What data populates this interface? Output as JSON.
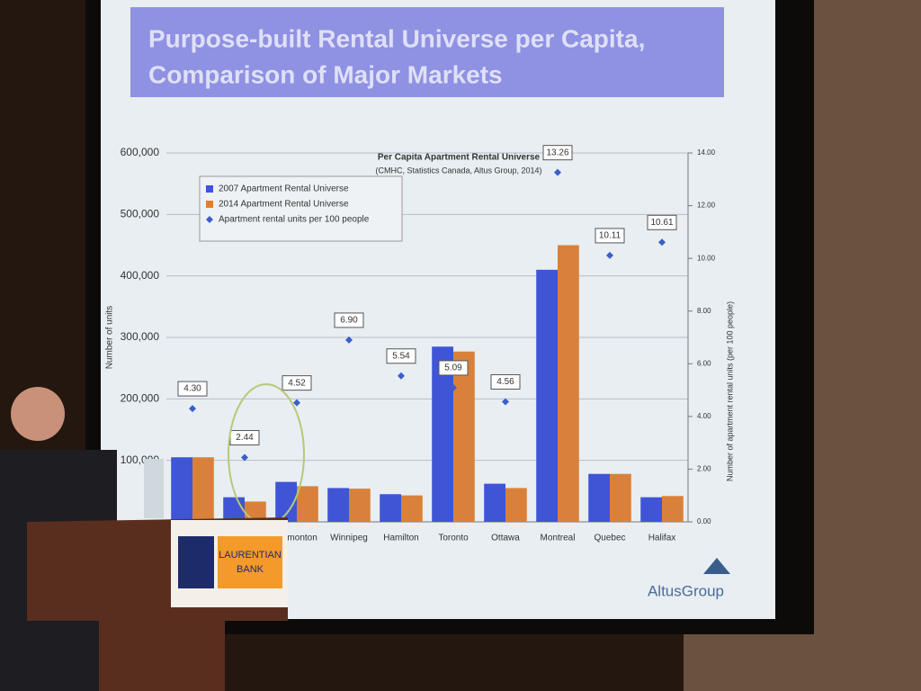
{
  "slide": {
    "title_lines": [
      "Purpose-built Rental Universe per Capita,",
      "Comparison of Major Markets"
    ],
    "logo": "AltusGroup"
  },
  "podium": {
    "sign_lines": [
      "LAURENTIAN",
      "BANK"
    ]
  },
  "chart_data": {
    "type": "bar",
    "title": "Per Capita Apartment Rental Universe",
    "subtitle": "(CMHC, Statistics Canada, Altus Group, 2014)",
    "y_label": "Number of units",
    "y2_label": "Number of apartment rental units (per 100 people)",
    "categories": [
      null,
      null,
      "Edmonton",
      "Winnipeg",
      "Hamilton",
      "Toronto",
      "Ottawa",
      "Montreal",
      "Quebec",
      "Halifax"
    ],
    "series": [
      {
        "name": "2007 Apartment Rental Universe",
        "color": "#3f55d6",
        "values": [
          105000,
          40000,
          65000,
          55000,
          45000,
          285000,
          62000,
          410000,
          78000,
          40000
        ]
      },
      {
        "name": "2014 Apartment Rental Universe",
        "color": "#d9813a",
        "values": [
          105000,
          33000,
          58000,
          54000,
          43000,
          277000,
          55000,
          450000,
          78000,
          42000
        ]
      },
      {
        "name": "Apartment rental units per 100 people",
        "color": "#3c5ec9",
        "axis": "y2",
        "marker": "diamond",
        "values": [
          4.3,
          2.44,
          4.52,
          6.9,
          5.54,
          5.09,
          4.56,
          13.26,
          10.11,
          10.61
        ],
        "value_labels": [
          "4.30",
          "2.44",
          "4.52",
          "6.90",
          "5.54",
          "5.09",
          "4.56",
          "13.26",
          "10.11",
          "10.61"
        ]
      }
    ],
    "ylim": [
      0,
      600000
    ],
    "yticks": [
      {
        "value": 100000,
        "label": "100,000"
      },
      {
        "value": 200000,
        "label": "200,000"
      },
      {
        "value": 300000,
        "label": "300,000"
      },
      {
        "value": 400000,
        "label": "400,000"
      },
      {
        "value": 500000,
        "label": "500,000"
      },
      {
        "value": 600000,
        "label": "600,000"
      }
    ],
    "y2lim": [
      0,
      14
    ],
    "y2ticks": [
      {
        "value": 0,
        "label": "0.00"
      },
      {
        "value": 2,
        "label": "2.00"
      },
      {
        "value": 4,
        "label": "4.00"
      },
      {
        "value": 6,
        "label": "6.00"
      },
      {
        "value": 8,
        "label": "8.00"
      },
      {
        "value": 10,
        "label": "10.00"
      },
      {
        "value": 12,
        "label": "12.00"
      },
      {
        "value": 14,
        "label": "14.00"
      }
    ],
    "grid": true
  }
}
